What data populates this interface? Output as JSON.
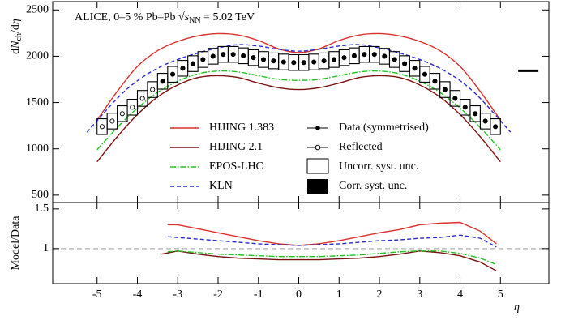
{
  "chart_data": [
    {
      "type": "line",
      "smooth": true,
      "title_parts": [
        "ALICE, 0–5 % Pb–Pb ",
        "√",
        "s",
        "NN",
        " = 5.02 TeV"
      ],
      "ylabel_parts": [
        "d",
        "N",
        "ch",
        "/d",
        "η"
      ],
      "xlim": [
        -6.1,
        6.2
      ],
      "ylim": [
        420,
        2590
      ],
      "xticks": [
        -5,
        -4,
        -3,
        -2,
        -1,
        0,
        1,
        2,
        3,
        4,
        5
      ],
      "yticks": [
        500,
        1000,
        1500,
        2000,
        2500
      ],
      "series": [
        {
          "name": "HIJING 1.383",
          "color": "#d9302c",
          "dash": "solid",
          "x": [
            -5,
            -4.5,
            -4,
            -3.5,
            -3,
            -2.5,
            -2,
            -1.5,
            -1,
            -0.5,
            0,
            0.5,
            1,
            1.5,
            2,
            2.5,
            3,
            3.5,
            4,
            4.5,
            5
          ],
          "values": [
            1310,
            1620,
            1890,
            2060,
            2160,
            2220,
            2245,
            2230,
            2170,
            2080,
            2040,
            2080,
            2170,
            2230,
            2245,
            2220,
            2160,
            2060,
            1890,
            1620,
            1310
          ]
        },
        {
          "name": "HIJING 2.1",
          "color": "#7a1010",
          "dash": "solid",
          "x": [
            -5,
            -4.5,
            -4,
            -3.5,
            -3,
            -2.5,
            -2,
            -1.5,
            -1,
            -0.5,
            0,
            0.5,
            1,
            1.5,
            2,
            2.5,
            3,
            3.5,
            4,
            4.5,
            5
          ],
          "values": [
            860,
            1130,
            1370,
            1560,
            1690,
            1770,
            1790,
            1770,
            1710,
            1660,
            1640,
            1660,
            1710,
            1770,
            1790,
            1770,
            1690,
            1560,
            1370,
            1130,
            860
          ]
        },
        {
          "name": "EPOS-LHC",
          "color": "#22c322",
          "dash": "dashdot",
          "x": [
            -5,
            -4.5,
            -4,
            -3.5,
            -3,
            -2.5,
            -2,
            -1.5,
            -1,
            -0.5,
            0,
            0.5,
            1,
            1.5,
            2,
            2.5,
            3,
            3.5,
            4,
            4.5,
            5
          ],
          "values": [
            990,
            1230,
            1440,
            1610,
            1730,
            1810,
            1840,
            1830,
            1790,
            1750,
            1740,
            1750,
            1790,
            1830,
            1840,
            1810,
            1730,
            1610,
            1440,
            1230,
            990
          ]
        },
        {
          "name": "KLN",
          "color": "#2a2ad0",
          "dash": "dash",
          "x": [
            -5.25,
            -4.5,
            -4,
            -3.5,
            -3,
            -2.5,
            -2,
            -1.5,
            -1,
            -0.5,
            0,
            0.5,
            1,
            1.5,
            2,
            2.5,
            3,
            3.5,
            4,
            4.5,
            5.25
          ],
          "values": [
            1180,
            1545,
            1735,
            1870,
            1965,
            2035,
            2090,
            2125,
            2110,
            2075,
            2055,
            2075,
            2110,
            2125,
            2090,
            2035,
            1965,
            1870,
            1735,
            1545,
            1180
          ]
        }
      ],
      "data": {
        "name": "Data (symmetrised)",
        "x": [
          -3.375,
          -3.125,
          -2.875,
          -2.625,
          -2.375,
          -2.125,
          -1.875,
          -1.625,
          -1.375,
          -1.125,
          -0.875,
          -0.625,
          -0.375,
          -0.125,
          0.125,
          0.375,
          0.625,
          0.875,
          1.125,
          1.375,
          1.625,
          1.875,
          2.125,
          2.375,
          2.625,
          2.875,
          3.125,
          3.375,
          3.625,
          3.875,
          4.125,
          4.375,
          4.625,
          4.875
        ],
        "values": [
          1730,
          1805,
          1870,
          1920,
          1965,
          2000,
          2020,
          2020,
          2005,
          1985,
          1965,
          1950,
          1938,
          1932,
          1932,
          1938,
          1950,
          1965,
          1985,
          2005,
          2020,
          2020,
          2000,
          1965,
          1920,
          1870,
          1805,
          1730,
          1640,
          1545,
          1450,
          1380,
          1300,
          1240
        ],
        "errors": [
          85,
          85,
          85,
          85,
          85,
          85,
          85,
          85,
          85,
          85,
          85,
          85,
          85,
          85,
          85,
          85,
          85,
          85,
          85,
          85,
          85,
          85,
          85,
          85,
          85,
          85,
          85,
          85,
          85,
          85,
          85,
          85,
          85,
          85
        ]
      },
      "reflected": {
        "name": "Reflected",
        "x": [
          -4.875,
          -4.625,
          -4.375,
          -4.125,
          -3.875,
          -3.625
        ],
        "values": [
          1240,
          1300,
          1380,
          1450,
          1545,
          1640
        ],
        "errors": [
          85,
          85,
          85,
          85,
          85,
          85
        ]
      },
      "uncorr_name": "Uncorr. syst. unc.",
      "corr": {
        "name": "Corr. syst. unc.",
        "x": 5.69,
        "value": 1843
      }
    },
    {
      "type": "line",
      "smooth": false,
      "ylabel": "Model/Data",
      "xlabel": "η",
      "xlim": [
        -6.1,
        6.2
      ],
      "ylim": [
        0.56,
        1.58
      ],
      "xticks": [
        -5,
        -4,
        -3,
        -2,
        -1,
        0,
        1,
        2,
        3,
        4,
        5
      ],
      "yticks": [
        1,
        1.5
      ],
      "reference": 1,
      "reference_color": "#b0b0b0",
      "series": [
        {
          "color": "#d9302c",
          "dash": "solid",
          "x": [
            -3.25,
            -3,
            -2.5,
            -2,
            -1.5,
            -1,
            -0.5,
            0,
            0.5,
            1,
            1.5,
            2,
            2.5,
            3,
            3.5,
            4,
            4.5,
            4.9
          ],
          "values": [
            1.3,
            1.3,
            1.25,
            1.2,
            1.15,
            1.1,
            1.06,
            1.04,
            1.06,
            1.1,
            1.15,
            1.2,
            1.24,
            1.3,
            1.32,
            1.33,
            1.22,
            1.06
          ]
        },
        {
          "color": "#7a1010",
          "dash": "solid",
          "x": [
            -3.4,
            -3,
            -2.5,
            -2,
            -1.5,
            -1,
            -0.5,
            0,
            0.5,
            1,
            1.5,
            2,
            2.5,
            3,
            3.5,
            4,
            4.5,
            4.9
          ],
          "values": [
            0.93,
            0.97,
            0.93,
            0.9,
            0.88,
            0.87,
            0.86,
            0.86,
            0.86,
            0.87,
            0.88,
            0.9,
            0.93,
            0.97,
            0.95,
            0.91,
            0.83,
            0.72
          ]
        },
        {
          "color": "#22c322",
          "dash": "dashdot",
          "x": [
            -3.25,
            -3,
            -2.5,
            -2,
            -1.5,
            -1,
            -0.5,
            0,
            0.5,
            1,
            1.5,
            2,
            2.5,
            3,
            3.5,
            4,
            4.5,
            4.9
          ],
          "values": [
            0.96,
            0.97,
            0.95,
            0.93,
            0.92,
            0.91,
            0.9,
            0.9,
            0.9,
            0.91,
            0.92,
            0.94,
            0.96,
            0.97,
            0.97,
            0.94,
            0.88,
            0.8
          ]
        },
        {
          "color": "#2a2ad0",
          "dash": "dash",
          "x": [
            -3.25,
            -3,
            -2.5,
            -2,
            -1.5,
            -1,
            -0.5,
            0,
            0.5,
            1,
            1.5,
            2,
            2.5,
            3,
            3.5,
            4,
            4.5,
            4.9
          ],
          "values": [
            1.15,
            1.14,
            1.12,
            1.1,
            1.08,
            1.06,
            1.05,
            1.04,
            1.05,
            1.06,
            1.08,
            1.1,
            1.11,
            1.13,
            1.14,
            1.17,
            1.13,
            1.02
          ]
        }
      ]
    }
  ]
}
